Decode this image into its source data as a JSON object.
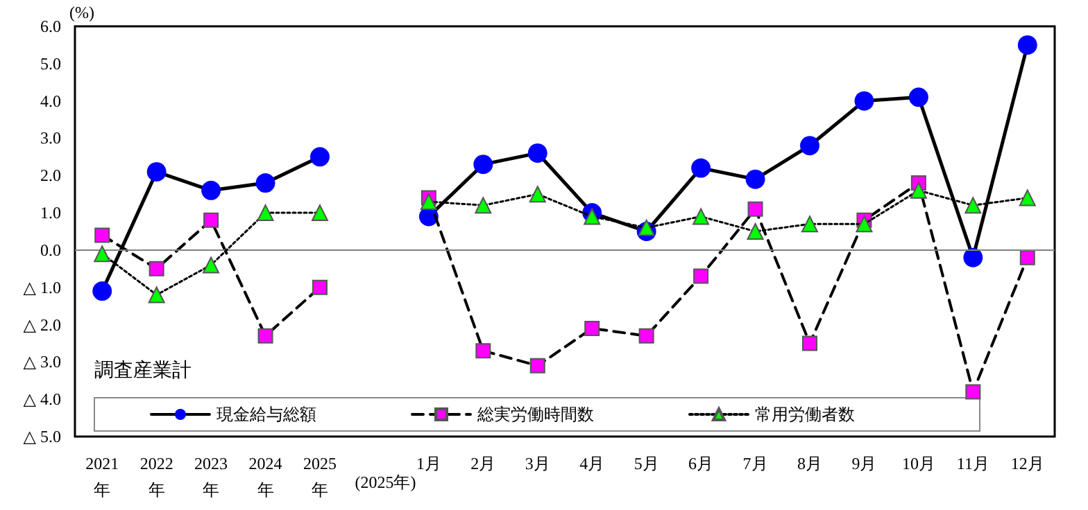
{
  "chart_data": {
    "type": "line",
    "ylabel": "(%)",
    "legend_title": "調査産業計",
    "categories": [
      "2021\n年",
      "2022\n年",
      "2023\n年",
      "2024\n年",
      "2025\n年",
      null,
      "1月",
      "2月",
      "3月",
      "4月",
      "5月",
      "6月",
      "7月",
      "8月",
      "9月",
      "10月",
      "11月",
      "12月"
    ],
    "annotations": [
      "(2025年)"
    ],
    "series": [
      {
        "name": "現金給与総額",
        "color": "#0000ff",
        "marker": "circle",
        "line_style": "solid",
        "values": [
          -1.1,
          2.1,
          1.6,
          1.8,
          2.5,
          null,
          0.9,
          2.3,
          2.6,
          1.0,
          0.5,
          2.2,
          1.9,
          2.8,
          4.0,
          4.1,
          -0.2,
          5.5
        ]
      },
      {
        "name": "総実労働時間数",
        "color": "#ff00ff",
        "marker": "square",
        "line_style": "dashed",
        "values": [
          0.4,
          -0.5,
          0.8,
          -2.3,
          -1.0,
          null,
          1.4,
          -2.7,
          -3.1,
          -2.1,
          -2.3,
          -0.7,
          1.1,
          -2.5,
          0.8,
          1.8,
          -3.8,
          -0.2
        ]
      },
      {
        "name": "常用労働者数",
        "color": "#00ff00",
        "marker": "triangle",
        "line_style": "dotted",
        "values": [
          -0.1,
          -1.2,
          -0.4,
          1.0,
          1.0,
          null,
          1.3,
          1.2,
          1.5,
          0.9,
          0.6,
          0.9,
          0.5,
          0.7,
          0.7,
          1.6,
          1.2,
          1.4
        ]
      }
    ],
    "ylim": [
      -5,
      6
    ],
    "yticks": [
      {
        "value": 6,
        "label": "6.0"
      },
      {
        "value": 5,
        "label": "5.0"
      },
      {
        "value": 4,
        "label": "4.0"
      },
      {
        "value": 3,
        "label": "3.0"
      },
      {
        "value": 2,
        "label": "2.0"
      },
      {
        "value": 1,
        "label": "1.0"
      },
      {
        "value": 0,
        "label": "0.0"
      },
      {
        "value": -1,
        "label": "△ 1.0"
      },
      {
        "value": -2,
        "label": "△ 2.0"
      },
      {
        "value": -3,
        "label": "△ 3.0"
      },
      {
        "value": -4,
        "label": "△ 4.0"
      },
      {
        "value": -5,
        "label": "△ 5.0"
      }
    ],
    "ref_lines": [
      {
        "axis": "y",
        "value": 0,
        "color": "#808080"
      }
    ],
    "grid": false,
    "legend": "bottom"
  }
}
